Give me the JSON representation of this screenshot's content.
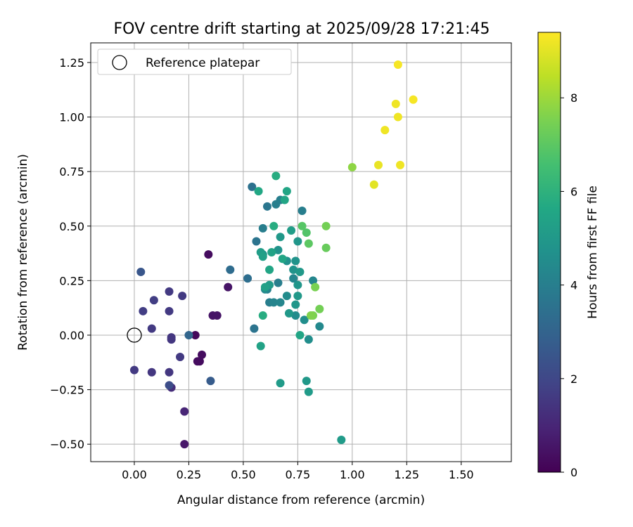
{
  "chart_data": {
    "type": "scatter",
    "title": "FOV centre drift starting at 2025/09/28 17:21:45",
    "xlabel": "Angular distance from reference (arcmin)",
    "ylabel": "Rotation from reference (arcmin)",
    "xlim": [
      -0.2,
      1.73
    ],
    "ylim": [
      -0.58,
      1.34
    ],
    "xticks": [
      0.0,
      0.25,
      0.5,
      0.75,
      1.0,
      1.25,
      1.5
    ],
    "xtick_labels": [
      "0.00",
      "0.25",
      "0.50",
      "0.75",
      "1.00",
      "1.25",
      "1.50"
    ],
    "yticks": [
      -0.5,
      -0.25,
      0.0,
      0.25,
      0.5,
      0.75,
      1.0,
      1.25
    ],
    "ytick_labels": [
      "−0.50",
      "−0.25",
      "0.00",
      "0.25",
      "0.50",
      "0.75",
      "1.00",
      "1.25"
    ],
    "grid": true,
    "legend": {
      "label": "Reference platepar",
      "position": "top-left",
      "marker": "open-circle"
    },
    "reference_point": {
      "x": 0.0,
      "y": 0.0
    },
    "colorbar": {
      "label": "Hours from first FF file",
      "colormap": "viridis",
      "range": [
        0,
        9.4
      ],
      "ticks": [
        0,
        2,
        4,
        6,
        8
      ],
      "tick_labels": [
        "0",
        "2",
        "4",
        "6",
        "8"
      ]
    },
    "points": [
      [
        0.28,
        0.0,
        0.2
      ],
      [
        0.29,
        -0.12,
        0.3
      ],
      [
        0.3,
        -0.12,
        0.3
      ],
      [
        0.31,
        -0.09,
        0.3
      ],
      [
        0.34,
        0.37,
        0.3
      ],
      [
        0.38,
        0.09,
        0.5
      ],
      [
        0.36,
        0.09,
        0.5
      ],
      [
        0.43,
        0.22,
        0.5
      ],
      [
        0.23,
        -0.5,
        0.6
      ],
      [
        0.23,
        -0.35,
        1.0
      ],
      [
        0.17,
        -0.24,
        1.2
      ],
      [
        0.16,
        -0.17,
        1.5
      ],
      [
        0.08,
        -0.17,
        1.5
      ],
      [
        0.17,
        -0.01,
        1.5
      ],
      [
        0.17,
        -0.02,
        1.5
      ],
      [
        0.21,
        -0.1,
        1.6
      ],
      [
        0.08,
        0.03,
        1.6
      ],
      [
        0.0,
        -0.16,
        1.6
      ],
      [
        0.22,
        0.18,
        1.6
      ],
      [
        0.16,
        0.2,
        1.6
      ],
      [
        0.16,
        0.11,
        1.6
      ],
      [
        0.04,
        0.11,
        1.7
      ],
      [
        0.09,
        0.16,
        1.7
      ],
      [
        0.16,
        -0.23,
        2.2
      ],
      [
        0.03,
        0.29,
        2.5
      ],
      [
        0.35,
        -0.21,
        2.7
      ],
      [
        0.25,
        0.0,
        3.1
      ],
      [
        0.44,
        0.3,
        3.3
      ],
      [
        0.52,
        0.26,
        3.4
      ],
      [
        0.55,
        0.03,
        3.6
      ],
      [
        0.56,
        0.43,
        3.6
      ],
      [
        0.54,
        0.68,
        3.5
      ],
      [
        0.61,
        0.59,
        3.7
      ],
      [
        0.59,
        0.49,
        4.0
      ],
      [
        0.61,
        0.21,
        4.1
      ],
      [
        0.6,
        0.21,
        4.4
      ],
      [
        0.62,
        0.15,
        4.0
      ],
      [
        0.64,
        0.15,
        4.2
      ],
      [
        0.65,
        0.6,
        4.0
      ],
      [
        0.66,
        0.24,
        4.0
      ],
      [
        0.67,
        0.15,
        4.3
      ],
      [
        0.67,
        0.62,
        4.0
      ],
      [
        0.7,
        0.18,
        4.5
      ],
      [
        0.73,
        0.26,
        4.3
      ],
      [
        0.74,
        0.09,
        4.5
      ],
      [
        0.77,
        0.57,
        4.0
      ],
      [
        0.78,
        0.07,
        4.6
      ],
      [
        0.85,
        0.04,
        4.4
      ],
      [
        0.82,
        0.25,
        4.3
      ],
      [
        0.8,
        -0.02,
        4.6
      ],
      [
        0.59,
        0.37,
        4.8
      ],
      [
        0.66,
        0.39,
        4.8
      ],
      [
        0.7,
        0.34,
        4.7
      ],
      [
        0.67,
        0.45,
        5.0
      ],
      [
        0.75,
        0.43,
        4.9
      ],
      [
        0.73,
        0.3,
        4.8
      ],
      [
        0.74,
        0.34,
        4.8
      ],
      [
        0.75,
        0.23,
        4.9
      ],
      [
        0.74,
        0.14,
        4.9
      ],
      [
        0.75,
        0.18,
        5.0
      ],
      [
        0.76,
        0.29,
        5.0
      ],
      [
        0.62,
        0.23,
        5.1
      ],
      [
        0.72,
        0.48,
        5.2
      ],
      [
        0.71,
        0.1,
        5.0
      ],
      [
        0.79,
        -0.21,
        5.0
      ],
      [
        0.8,
        -0.26,
        5.1
      ],
      [
        0.95,
        -0.48,
        5.1
      ],
      [
        0.67,
        -0.22,
        5.1
      ],
      [
        0.58,
        -0.05,
        5.4
      ],
      [
        0.58,
        0.38,
        5.2
      ],
      [
        0.59,
        0.36,
        5.3
      ],
      [
        0.63,
        0.38,
        5.4
      ],
      [
        0.62,
        0.3,
        5.5
      ],
      [
        0.6,
        0.22,
        5.3
      ],
      [
        0.68,
        0.35,
        5.5
      ],
      [
        0.76,
        0.0,
        5.5
      ],
      [
        0.69,
        0.62,
        5.5
      ],
      [
        0.7,
        0.66,
        5.5
      ],
      [
        0.57,
        0.66,
        5.6
      ],
      [
        0.64,
        0.5,
        5.8
      ],
      [
        0.65,
        0.73,
        5.8
      ],
      [
        0.59,
        0.09,
        5.8
      ],
      [
        0.79,
        0.47,
        6.8
      ],
      [
        0.77,
        0.5,
        6.9
      ],
      [
        0.8,
        0.42,
        7.0
      ],
      [
        0.88,
        0.5,
        7.4
      ],
      [
        0.88,
        0.4,
        7.2
      ],
      [
        0.83,
        0.22,
        7.5
      ],
      [
        0.85,
        0.12,
        7.4
      ],
      [
        0.82,
        0.09,
        7.5
      ],
      [
        0.81,
        0.09,
        7.6
      ],
      [
        1.0,
        0.77,
        7.8
      ],
      [
        1.1,
        0.69,
        9.0
      ],
      [
        1.12,
        0.78,
        9.1
      ],
      [
        1.15,
        0.94,
        9.2
      ],
      [
        1.2,
        1.06,
        9.2
      ],
      [
        1.21,
        1.0,
        9.2
      ],
      [
        1.22,
        0.78,
        9.2
      ],
      [
        1.21,
        1.24,
        9.3
      ],
      [
        1.28,
        1.08,
        9.3
      ]
    ]
  }
}
